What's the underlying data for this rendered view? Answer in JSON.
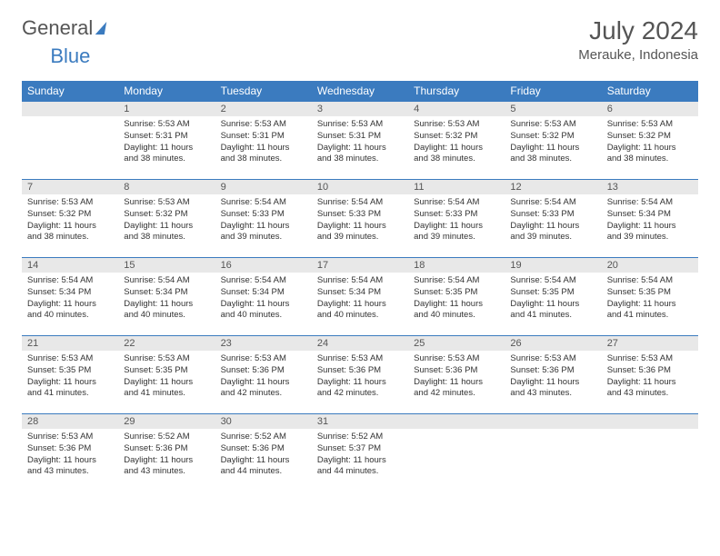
{
  "brand": {
    "part1": "General",
    "part2": "Blue"
  },
  "title": "July 2024",
  "location": "Merauke, Indonesia",
  "colors": {
    "header_bg": "#3b7bbf",
    "header_text": "#ffffff",
    "daynum_bg": "#e8e8e8",
    "page_bg": "#ffffff",
    "text": "#333333",
    "row_border": "#3b7bbf"
  },
  "weekdays": [
    "Sunday",
    "Monday",
    "Tuesday",
    "Wednesday",
    "Thursday",
    "Friday",
    "Saturday"
  ],
  "weeks": [
    [
      {
        "n": "",
        "sr": "",
        "ss": "",
        "dl": ""
      },
      {
        "n": "1",
        "sr": "Sunrise: 5:53 AM",
        "ss": "Sunset: 5:31 PM",
        "dl": "Daylight: 11 hours and 38 minutes."
      },
      {
        "n": "2",
        "sr": "Sunrise: 5:53 AM",
        "ss": "Sunset: 5:31 PM",
        "dl": "Daylight: 11 hours and 38 minutes."
      },
      {
        "n": "3",
        "sr": "Sunrise: 5:53 AM",
        "ss": "Sunset: 5:31 PM",
        "dl": "Daylight: 11 hours and 38 minutes."
      },
      {
        "n": "4",
        "sr": "Sunrise: 5:53 AM",
        "ss": "Sunset: 5:32 PM",
        "dl": "Daylight: 11 hours and 38 minutes."
      },
      {
        "n": "5",
        "sr": "Sunrise: 5:53 AM",
        "ss": "Sunset: 5:32 PM",
        "dl": "Daylight: 11 hours and 38 minutes."
      },
      {
        "n": "6",
        "sr": "Sunrise: 5:53 AM",
        "ss": "Sunset: 5:32 PM",
        "dl": "Daylight: 11 hours and 38 minutes."
      }
    ],
    [
      {
        "n": "7",
        "sr": "Sunrise: 5:53 AM",
        "ss": "Sunset: 5:32 PM",
        "dl": "Daylight: 11 hours and 38 minutes."
      },
      {
        "n": "8",
        "sr": "Sunrise: 5:53 AM",
        "ss": "Sunset: 5:32 PM",
        "dl": "Daylight: 11 hours and 38 minutes."
      },
      {
        "n": "9",
        "sr": "Sunrise: 5:54 AM",
        "ss": "Sunset: 5:33 PM",
        "dl": "Daylight: 11 hours and 39 minutes."
      },
      {
        "n": "10",
        "sr": "Sunrise: 5:54 AM",
        "ss": "Sunset: 5:33 PM",
        "dl": "Daylight: 11 hours and 39 minutes."
      },
      {
        "n": "11",
        "sr": "Sunrise: 5:54 AM",
        "ss": "Sunset: 5:33 PM",
        "dl": "Daylight: 11 hours and 39 minutes."
      },
      {
        "n": "12",
        "sr": "Sunrise: 5:54 AM",
        "ss": "Sunset: 5:33 PM",
        "dl": "Daylight: 11 hours and 39 minutes."
      },
      {
        "n": "13",
        "sr": "Sunrise: 5:54 AM",
        "ss": "Sunset: 5:34 PM",
        "dl": "Daylight: 11 hours and 39 minutes."
      }
    ],
    [
      {
        "n": "14",
        "sr": "Sunrise: 5:54 AM",
        "ss": "Sunset: 5:34 PM",
        "dl": "Daylight: 11 hours and 40 minutes."
      },
      {
        "n": "15",
        "sr": "Sunrise: 5:54 AM",
        "ss": "Sunset: 5:34 PM",
        "dl": "Daylight: 11 hours and 40 minutes."
      },
      {
        "n": "16",
        "sr": "Sunrise: 5:54 AM",
        "ss": "Sunset: 5:34 PM",
        "dl": "Daylight: 11 hours and 40 minutes."
      },
      {
        "n": "17",
        "sr": "Sunrise: 5:54 AM",
        "ss": "Sunset: 5:34 PM",
        "dl": "Daylight: 11 hours and 40 minutes."
      },
      {
        "n": "18",
        "sr": "Sunrise: 5:54 AM",
        "ss": "Sunset: 5:35 PM",
        "dl": "Daylight: 11 hours and 40 minutes."
      },
      {
        "n": "19",
        "sr": "Sunrise: 5:54 AM",
        "ss": "Sunset: 5:35 PM",
        "dl": "Daylight: 11 hours and 41 minutes."
      },
      {
        "n": "20",
        "sr": "Sunrise: 5:54 AM",
        "ss": "Sunset: 5:35 PM",
        "dl": "Daylight: 11 hours and 41 minutes."
      }
    ],
    [
      {
        "n": "21",
        "sr": "Sunrise: 5:53 AM",
        "ss": "Sunset: 5:35 PM",
        "dl": "Daylight: 11 hours and 41 minutes."
      },
      {
        "n": "22",
        "sr": "Sunrise: 5:53 AM",
        "ss": "Sunset: 5:35 PM",
        "dl": "Daylight: 11 hours and 41 minutes."
      },
      {
        "n": "23",
        "sr": "Sunrise: 5:53 AM",
        "ss": "Sunset: 5:36 PM",
        "dl": "Daylight: 11 hours and 42 minutes."
      },
      {
        "n": "24",
        "sr": "Sunrise: 5:53 AM",
        "ss": "Sunset: 5:36 PM",
        "dl": "Daylight: 11 hours and 42 minutes."
      },
      {
        "n": "25",
        "sr": "Sunrise: 5:53 AM",
        "ss": "Sunset: 5:36 PM",
        "dl": "Daylight: 11 hours and 42 minutes."
      },
      {
        "n": "26",
        "sr": "Sunrise: 5:53 AM",
        "ss": "Sunset: 5:36 PM",
        "dl": "Daylight: 11 hours and 43 minutes."
      },
      {
        "n": "27",
        "sr": "Sunrise: 5:53 AM",
        "ss": "Sunset: 5:36 PM",
        "dl": "Daylight: 11 hours and 43 minutes."
      }
    ],
    [
      {
        "n": "28",
        "sr": "Sunrise: 5:53 AM",
        "ss": "Sunset: 5:36 PM",
        "dl": "Daylight: 11 hours and 43 minutes."
      },
      {
        "n": "29",
        "sr": "Sunrise: 5:52 AM",
        "ss": "Sunset: 5:36 PM",
        "dl": "Daylight: 11 hours and 43 minutes."
      },
      {
        "n": "30",
        "sr": "Sunrise: 5:52 AM",
        "ss": "Sunset: 5:36 PM",
        "dl": "Daylight: 11 hours and 44 minutes."
      },
      {
        "n": "31",
        "sr": "Sunrise: 5:52 AM",
        "ss": "Sunset: 5:37 PM",
        "dl": "Daylight: 11 hours and 44 minutes."
      },
      {
        "n": "",
        "sr": "",
        "ss": "",
        "dl": ""
      },
      {
        "n": "",
        "sr": "",
        "ss": "",
        "dl": ""
      },
      {
        "n": "",
        "sr": "",
        "ss": "",
        "dl": ""
      }
    ]
  ]
}
